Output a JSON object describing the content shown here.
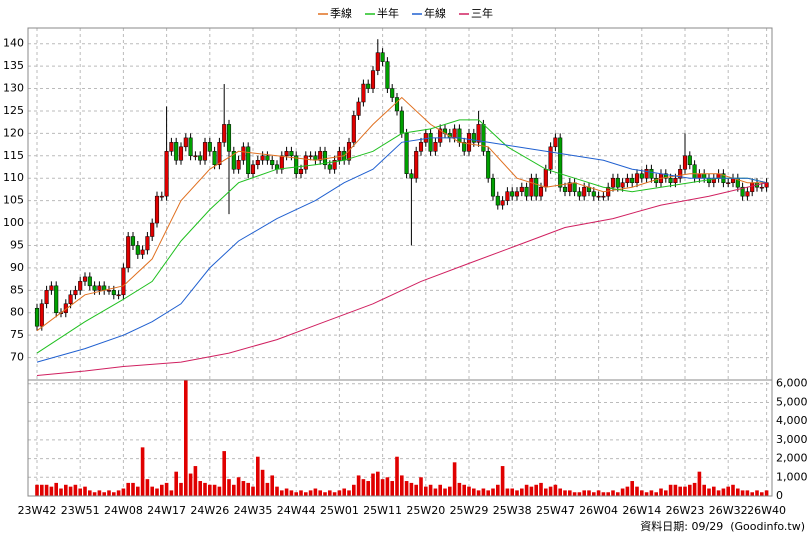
{
  "chart_data": {
    "type": "candlestick",
    "categories": [
      "23W42",
      null,
      null,
      null,
      null,
      null,
      null,
      null,
      null,
      "23W51",
      null,
      null,
      null,
      null,
      null,
      null,
      null,
      null,
      "24W08",
      null,
      null,
      null,
      null,
      null,
      null,
      null,
      null,
      "24W17",
      null,
      null,
      null,
      null,
      null,
      null,
      null,
      null,
      "24W26",
      null,
      null,
      null,
      null,
      null,
      null,
      null,
      null,
      "24W35",
      null,
      null,
      null,
      null,
      null,
      null,
      null,
      null,
      "24W44",
      null,
      null,
      null,
      null,
      null,
      null,
      null,
      null,
      "25W01",
      null,
      null,
      null,
      null,
      null,
      null,
      null,
      null,
      "25W11",
      null,
      null,
      null,
      null,
      null,
      null,
      null,
      null,
      "25W20",
      null,
      null,
      null,
      null,
      null,
      null,
      null,
      null,
      "25W29",
      null,
      null,
      null,
      null,
      null,
      null,
      null,
      null,
      "25W38",
      null,
      null,
      null,
      null,
      null,
      null,
      null,
      null,
      "25W47",
      null,
      null,
      null,
      null,
      null,
      null,
      null,
      null,
      "26W04",
      null,
      null,
      null,
      null,
      null,
      null,
      null,
      null,
      "26W14",
      null,
      null,
      null,
      null,
      null,
      null,
      null,
      null,
      "26W23",
      null,
      null,
      null,
      null,
      null,
      null,
      null,
      null,
      "26W32",
      null,
      null,
      null,
      null,
      null,
      null,
      null,
      "26W40"
    ],
    "open": [
      81,
      77,
      82,
      85,
      86,
      80,
      80,
      82,
      84,
      85,
      87,
      88,
      86,
      85,
      86,
      85,
      85,
      84,
      84,
      90,
      97,
      95,
      93,
      94,
      97,
      100,
      106,
      106,
      116,
      118,
      114,
      117,
      119,
      115,
      115,
      114,
      118,
      116,
      113,
      118,
      122,
      116,
      112,
      114,
      117,
      111,
      113,
      114,
      115,
      114,
      113,
      112,
      115,
      116,
      115,
      111,
      112,
      115,
      115,
      114,
      116,
      113,
      112,
      114,
      116,
      114,
      118,
      124,
      127,
      131,
      130,
      134,
      138,
      136,
      130,
      128,
      125,
      120,
      111,
      110,
      116,
      118,
      120,
      116,
      118,
      121,
      120,
      119,
      121,
      118,
      116,
      120,
      118,
      122,
      116,
      110,
      106,
      104,
      105,
      107,
      106,
      107,
      108,
      106,
      110,
      106,
      108,
      112,
      117,
      119,
      108,
      107,
      109,
      107,
      106,
      108,
      107,
      106,
      106,
      106,
      108,
      110,
      108,
      109,
      110,
      109,
      111,
      110,
      112,
      110,
      109,
      111,
      110,
      109,
      110,
      112,
      115,
      113,
      110,
      111,
      110,
      109,
      110,
      111,
      109,
      109,
      110,
      108,
      106,
      107,
      109,
      108,
      108
    ],
    "high": [
      82,
      83,
      86,
      87,
      87,
      81,
      83,
      85,
      86,
      88,
      89,
      89,
      87,
      87,
      87,
      86,
      86,
      85,
      91,
      98,
      98,
      96,
      95,
      98,
      101,
      107,
      107,
      126,
      119,
      119,
      118,
      120,
      120,
      116,
      116,
      119,
      119,
      117,
      119,
      131,
      123,
      117,
      115,
      118,
      118,
      114,
      115,
      116,
      116,
      115,
      114,
      116,
      117,
      117,
      116,
      113,
      116,
      116,
      116,
      117,
      117,
      114,
      115,
      117,
      117,
      119,
      125,
      128,
      132,
      132,
      135,
      141,
      139,
      137,
      131,
      129,
      126,
      121,
      112,
      117,
      119,
      121,
      121,
      119,
      122,
      122,
      121,
      122,
      122,
      119,
      121,
      121,
      125,
      123,
      117,
      111,
      107,
      106,
      108,
      108,
      108,
      109,
      109,
      111,
      111,
      109,
      113,
      118,
      120,
      120,
      109,
      110,
      110,
      108,
      109,
      109,
      108,
      107,
      107,
      109,
      111,
      111,
      110,
      111,
      111,
      112,
      112,
      113,
      113,
      111,
      112,
      112,
      111,
      111,
      113,
      120,
      116,
      114,
      112,
      112,
      111,
      111,
      112,
      112,
      110,
      111,
      111,
      109,
      108,
      110,
      110,
      109,
      110
    ],
    "low": [
      76,
      76,
      81,
      84,
      79,
      79,
      79,
      81,
      83,
      84,
      86,
      85,
      84,
      84,
      84,
      84,
      83,
      83,
      83,
      89,
      94,
      92,
      92,
      93,
      96,
      99,
      105,
      105,
      115,
      113,
      113,
      116,
      114,
      114,
      113,
      113,
      115,
      112,
      112,
      117,
      102,
      111,
      111,
      113,
      110,
      110,
      112,
      113,
      113,
      112,
      111,
      111,
      114,
      114,
      110,
      110,
      111,
      114,
      113,
      113,
      112,
      111,
      111,
      113,
      113,
      113,
      117,
      123,
      126,
      129,
      129,
      133,
      135,
      129,
      127,
      124,
      119,
      110,
      95,
      109,
      115,
      117,
      115,
      115,
      117,
      119,
      118,
      118,
      117,
      115,
      115,
      117,
      117,
      115,
      109,
      105,
      103,
      103,
      104,
      105,
      105,
      106,
      105,
      105,
      105,
      105,
      107,
      111,
      116,
      107,
      106,
      106,
      106,
      105,
      105,
      106,
      105,
      105,
      105,
      105,
      107,
      107,
      107,
      108,
      108,
      108,
      109,
      109,
      109,
      108,
      108,
      109,
      108,
      108,
      109,
      111,
      112,
      109,
      109,
      109,
      108,
      108,
      109,
      108,
      108,
      108,
      107,
      105,
      105,
      106,
      107,
      107,
      107
    ],
    "close": [
      77,
      82,
      85,
      86,
      80,
      80,
      82,
      84,
      85,
      87,
      88,
      86,
      85,
      86,
      85,
      85,
      84,
      84,
      90,
      97,
      95,
      93,
      94,
      97,
      100,
      106,
      106,
      116,
      118,
      114,
      117,
      119,
      115,
      115,
      114,
      118,
      116,
      113,
      118,
      122,
      116,
      112,
      114,
      117,
      111,
      113,
      114,
      115,
      114,
      113,
      112,
      115,
      116,
      115,
      111,
      112,
      115,
      115,
      114,
      116,
      113,
      112,
      114,
      116,
      114,
      118,
      124,
      127,
      131,
      130,
      134,
      138,
      136,
      130,
      128,
      125,
      120,
      111,
      110,
      116,
      118,
      120,
      116,
      118,
      121,
      120,
      119,
      121,
      118,
      116,
      120,
      118,
      122,
      116,
      110,
      106,
      104,
      105,
      107,
      106,
      107,
      108,
      106,
      110,
      106,
      108,
      112,
      117,
      119,
      108,
      107,
      109,
      107,
      106,
      108,
      107,
      106,
      106,
      106,
      108,
      110,
      108,
      109,
      110,
      109,
      111,
      110,
      112,
      110,
      109,
      111,
      110,
      109,
      110,
      112,
      115,
      113,
      110,
      111,
      110,
      109,
      110,
      111,
      109,
      109,
      110,
      108,
      106,
      107,
      109,
      108,
      108,
      109
    ],
    "up_color": "#e00000",
    "down_color": "#00a000",
    "ylim": [
      65,
      143.5
    ],
    "yticks": [
      70,
      75,
      80,
      85,
      90,
      95,
      100,
      105,
      110,
      115,
      120,
      125,
      130,
      135,
      140
    ],
    "grid": true,
    "series": [
      {
        "name": "季線",
        "color": "#e07020",
        "x": [
          0,
          10,
          18,
          24,
          30,
          36,
          42,
          50,
          58,
          64,
          70,
          76,
          82,
          88,
          94,
          100,
          106,
          112,
          118,
          124,
          130,
          136,
          142,
          148,
          152
        ],
        "values": [
          76,
          84,
          86,
          92,
          105,
          112,
          116,
          115,
          114,
          115,
          122,
          128,
          122,
          118,
          117,
          110,
          108,
          109,
          107,
          108,
          110,
          111,
          111,
          109,
          109
        ]
      },
      {
        "name": "半年",
        "color": "#20c020",
        "x": [
          0,
          10,
          18,
          24,
          30,
          36,
          42,
          50,
          58,
          64,
          70,
          76,
          82,
          88,
          92,
          98,
          106,
          112,
          118,
          124,
          130,
          136,
          142,
          148,
          152
        ],
        "values": [
          71,
          78,
          83,
          87,
          96,
          103,
          109,
          112,
          113,
          114,
          116,
          120,
          121,
          123,
          123,
          117,
          112,
          110,
          108,
          107,
          108,
          109,
          110,
          110,
          109
        ]
      },
      {
        "name": "年線",
        "color": "#2060d0",
        "x": [
          0,
          10,
          18,
          24,
          30,
          36,
          42,
          50,
          58,
          64,
          70,
          76,
          82,
          88,
          94,
          100,
          106,
          112,
          118,
          124,
          130,
          136,
          142,
          148,
          152
        ],
        "values": [
          69,
          72,
          75,
          78,
          82,
          90,
          96,
          101,
          105,
          109,
          112,
          118,
          119,
          119,
          118,
          117,
          116,
          115,
          114,
          112,
          111,
          110,
          110,
          110,
          109
        ]
      },
      {
        "name": "三年",
        "color": "#d02060",
        "x": [
          0,
          10,
          18,
          30,
          40,
          50,
          60,
          70,
          80,
          90,
          100,
          110,
          120,
          130,
          140,
          152
        ],
        "values": [
          66,
          67,
          68,
          69,
          71,
          74,
          78,
          82,
          87,
          91,
          95,
          99,
          101,
          104,
          106,
          109
        ]
      }
    ],
    "volume": {
      "values": [
        600,
        600,
        600,
        500,
        700,
        400,
        600,
        500,
        600,
        400,
        500,
        300,
        200,
        300,
        200,
        300,
        200,
        300,
        400,
        700,
        700,
        500,
        2600,
        900,
        500,
        400,
        600,
        700,
        300,
        1300,
        700,
        6200,
        1200,
        1600,
        800,
        700,
        600,
        600,
        500,
        2400,
        900,
        600,
        1000,
        800,
        700,
        500,
        2100,
        1400,
        700,
        1100,
        500,
        300,
        400,
        300,
        200,
        300,
        200,
        300,
        400,
        300,
        200,
        300,
        200,
        300,
        400,
        300,
        600,
        1100,
        900,
        800,
        1200,
        1300,
        900,
        1000,
        800,
        2100,
        1100,
        800,
        700,
        600,
        1000,
        500,
        600,
        400,
        600,
        400,
        500,
        1800,
        700,
        600,
        500,
        400,
        300,
        400,
        300,
        400,
        600,
        1600,
        400,
        400,
        300,
        400,
        600,
        500,
        600,
        700,
        400,
        500,
        600,
        400,
        300,
        300,
        200,
        200,
        300,
        300,
        200,
        300,
        200,
        200,
        300,
        200,
        400,
        500,
        800,
        500,
        300,
        200,
        300,
        200,
        400,
        300,
        600,
        600,
        500,
        500,
        600,
        700,
        1300,
        600,
        400,
        500,
        300,
        400,
        500,
        600,
        400,
        300,
        300,
        200,
        300,
        200,
        300
      ],
      "color": "#e00000",
      "ylim": [
        0,
        6200
      ],
      "yticks": [
        0,
        {
          "value": 1000,
          "label": "1,000"
        },
        {
          "value": 2000,
          "label": "2,000"
        },
        {
          "value": 3000,
          "label": "3,000"
        },
        {
          "value": 4000,
          "label": "4,000"
        },
        {
          "value": 5000,
          "label": "5,000"
        },
        {
          "value": 6000,
          "label": "6,000"
        }
      ]
    },
    "footer": "資料日期: 09/29  (Goodinfo.tw)"
  }
}
